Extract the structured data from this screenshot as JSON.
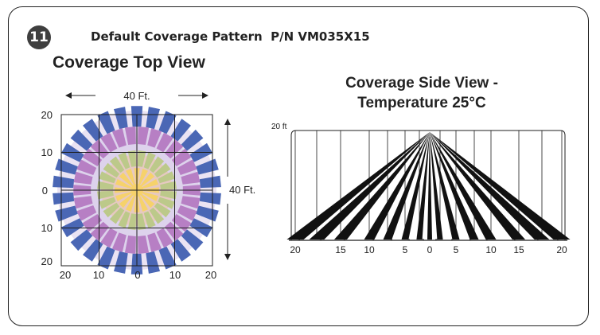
{
  "header": {
    "step_number": "11",
    "title": "Default Coverage Pattern  P/N VM035X15"
  },
  "top_view": {
    "title": "Coverage Top View",
    "width_label": "40 Ft.",
    "height_label": "40 Ft.",
    "y_ticks": [
      "20",
      "10",
      "0",
      "10",
      "20"
    ],
    "x_ticks": [
      "20",
      "10",
      "0",
      "10",
      "20"
    ],
    "colors": {
      "outer": "#4a67b5",
      "second": "#b77fc4",
      "middle": "#bcc98a",
      "inner": "#f6d26b",
      "haze": "#d8ccea"
    }
  },
  "side_view": {
    "title_line1": "Coverage Side View -",
    "title_line2": "Temperature 25°C",
    "height_label": "20 ft",
    "x_ticks": [
      "20",
      "15",
      "10",
      "5",
      "0",
      "5",
      "10",
      "15",
      "20"
    ]
  }
}
